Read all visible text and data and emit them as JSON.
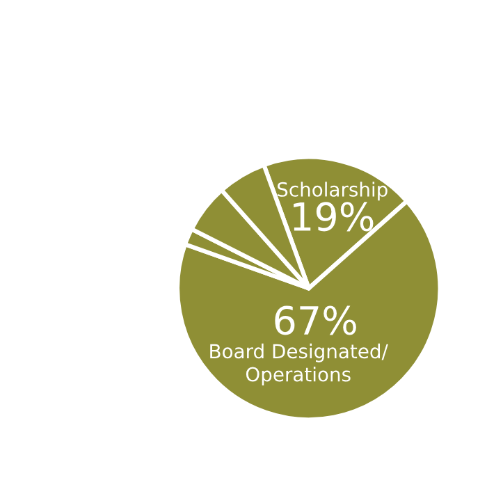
{
  "chart_data": {
    "type": "pie",
    "categories": [
      "Scholarship",
      "Board Designated/\nOperations",
      null,
      null,
      null
    ],
    "values": [
      19,
      67,
      2,
      6,
      6
    ],
    "value_labels": [
      "19%",
      "67%",
      null,
      null,
      null
    ],
    "colors": [
      "#8f8f35",
      "#8f8f35",
      "#8f8f35",
      "#8f8f35",
      "#8f8f35"
    ]
  }
}
